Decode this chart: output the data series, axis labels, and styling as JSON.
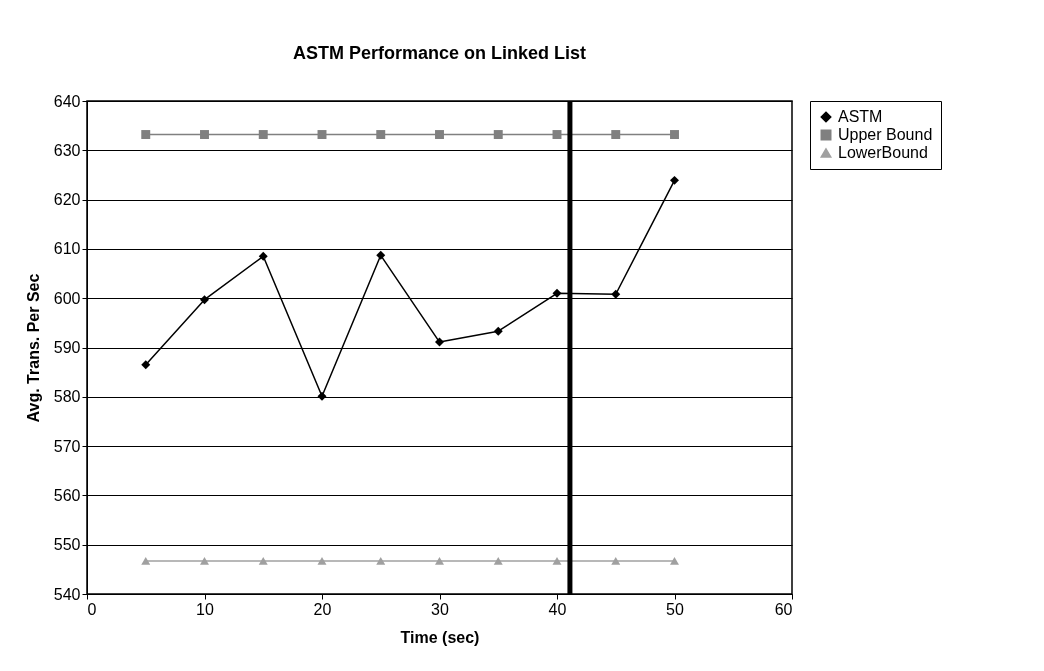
{
  "chart_data": {
    "type": "line",
    "title": "ASTM Performance on Linked List",
    "xlabel": "Time (sec)",
    "ylabel": "Avg. Trans. Per Sec",
    "x": [
      5,
      10,
      15,
      20,
      25,
      30,
      35,
      40,
      45,
      50
    ],
    "series": [
      {
        "name": "ASTM",
        "color": "#000000",
        "marker": "diamond",
        "values": [
          586.5,
          599.7,
          608.5,
          580.1,
          608.7,
          591.1,
          593.3,
          601.0,
          600.8,
          623.9
        ]
      },
      {
        "name": "Upper Bound",
        "color": "#808080",
        "marker": "square",
        "values": [
          633.2,
          633.2,
          633.2,
          633.2,
          633.2,
          633.2,
          633.2,
          633.2,
          633.2,
          633.2
        ]
      },
      {
        "name": "LowerBound",
        "color": "#a0a0a0",
        "marker": "triangle",
        "values": [
          546.7,
          546.7,
          546.7,
          546.7,
          546.7,
          546.7,
          546.7,
          546.7,
          546.7,
          546.7
        ]
      }
    ],
    "xlim": [
      0,
      60
    ],
    "xticks": [
      0,
      10,
      20,
      30,
      40,
      50,
      60
    ],
    "ylim": [
      540,
      640
    ],
    "yticks": [
      540,
      550,
      560,
      570,
      580,
      590,
      600,
      610,
      620,
      630,
      640
    ],
    "ref_lines": [
      {
        "axis": "x",
        "value": 41.1,
        "color": "#000000"
      }
    ],
    "grid": "y",
    "legend": "right",
    "line_style": "solid"
  }
}
